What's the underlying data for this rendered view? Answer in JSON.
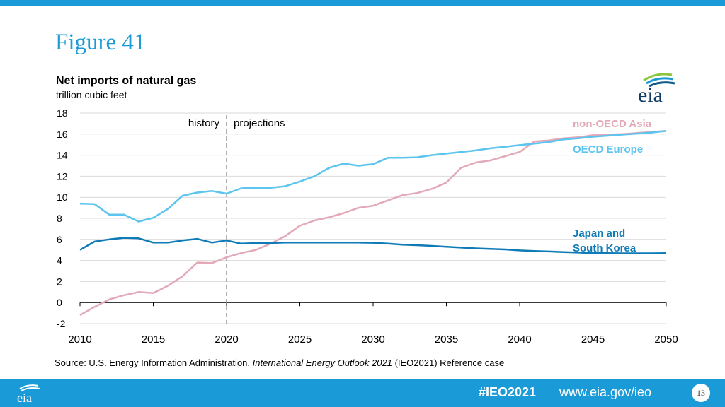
{
  "header": {
    "figure_title": "Figure 41"
  },
  "logo": {
    "text": "eia"
  },
  "colors": {
    "brand": "#1a9ad6",
    "nonoecd_asia": "#e2a9b8",
    "oecd_europe": "#5bc4ef",
    "japan_korea": "#0e7bb6"
  },
  "chart_data": {
    "type": "line",
    "title": "Net imports of natural gas",
    "ylabel": "trillion cubic feet",
    "xlabel": "",
    "x": [
      2010,
      2011,
      2012,
      2013,
      2014,
      2015,
      2016,
      2017,
      2018,
      2019,
      2020,
      2021,
      2022,
      2023,
      2024,
      2025,
      2026,
      2027,
      2028,
      2029,
      2030,
      2031,
      2032,
      2033,
      2034,
      2035,
      2036,
      2037,
      2038,
      2039,
      2040,
      2041,
      2042,
      2043,
      2044,
      2045,
      2046,
      2047,
      2048,
      2049,
      2050
    ],
    "xlim": [
      2010,
      2050
    ],
    "ylim": [
      -2,
      18
    ],
    "xticks": [
      "2010",
      "2015",
      "2020",
      "2025",
      "2030",
      "2035",
      "2040",
      "2045",
      "2050"
    ],
    "yticks": [
      "-2",
      "0",
      "2",
      "4",
      "6",
      "8",
      "10",
      "12",
      "14",
      "16",
      "18"
    ],
    "series": [
      {
        "name": "non-OECD Asia",
        "color": "#e2a9b8",
        "values": [
          -1.2,
          -0.4,
          0.3,
          0.7,
          1.0,
          0.9,
          1.6,
          2.5,
          3.8,
          3.75,
          4.3,
          4.7,
          5.0,
          5.6,
          6.3,
          7.3,
          7.8,
          8.1,
          8.5,
          9.0,
          9.2,
          9.7,
          10.2,
          10.4,
          10.8,
          11.4,
          12.8,
          13.3,
          13.5,
          13.9,
          14.3,
          15.3,
          15.4,
          15.6,
          15.7,
          15.9,
          15.95,
          16.0,
          16.1,
          16.2,
          16.3
        ]
      },
      {
        "name": "OECD Europe",
        "color": "#5bc4ef",
        "values": [
          9.4,
          9.35,
          8.35,
          8.35,
          7.7,
          8.05,
          8.9,
          10.15,
          10.45,
          10.6,
          10.35,
          10.85,
          10.9,
          10.9,
          11.05,
          11.5,
          12.0,
          12.8,
          13.2,
          13.0,
          13.15,
          13.75,
          13.75,
          13.8,
          14.0,
          14.15,
          14.3,
          14.45,
          14.65,
          14.8,
          14.95,
          15.1,
          15.25,
          15.5,
          15.6,
          15.75,
          15.85,
          15.95,
          16.05,
          16.15,
          16.3
        ]
      },
      {
        "name": "Japan and South Korea",
        "color": "#0e7bb6",
        "values": [
          5.0,
          5.8,
          6.0,
          6.15,
          6.1,
          5.7,
          5.7,
          5.9,
          6.05,
          5.7,
          5.9,
          5.6,
          5.65,
          5.65,
          5.7,
          5.7,
          5.7,
          5.7,
          5.7,
          5.7,
          5.68,
          5.6,
          5.5,
          5.45,
          5.38,
          5.3,
          5.22,
          5.15,
          5.1,
          5.05,
          4.95,
          4.9,
          4.85,
          4.8,
          4.75,
          4.7,
          4.7,
          4.68,
          4.68,
          4.68,
          4.7
        ]
      }
    ],
    "series_labels": {
      "non_oecd_asia": "non-OECD Asia",
      "oecd_europe": "OECD Europe",
      "japan_korea_line1": "Japan and",
      "japan_korea_line2": "South Korea"
    },
    "annotations": {
      "history": "history",
      "projections": "projections",
      "divider_x": 2020
    },
    "grid": true
  },
  "source": {
    "prefix": "Source:  U.S. Energy Information Administration, ",
    "publication": "International Energy Outlook 2021",
    "suffix": " (IEO2021) Reference case"
  },
  "footer": {
    "hashtag": "#IEO2021",
    "url": "www.eia.gov/ieo",
    "page_number": "13"
  }
}
